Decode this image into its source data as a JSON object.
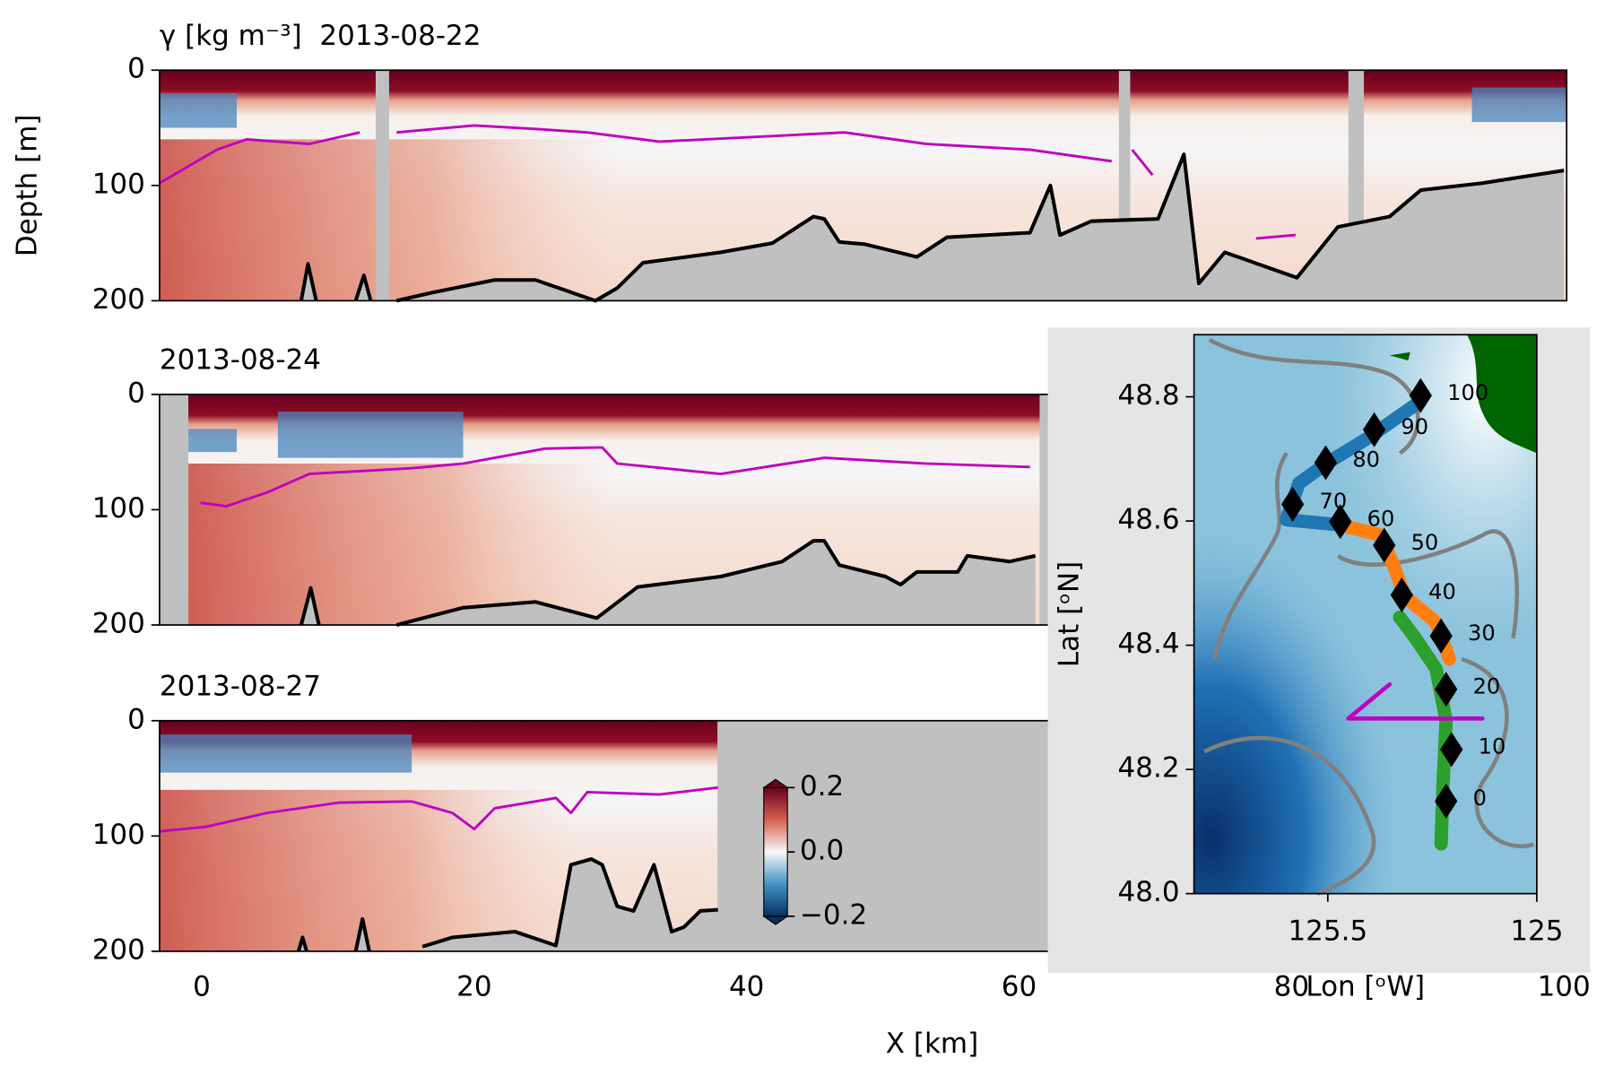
{
  "chart_data": [
    {
      "type": "section",
      "title": "γ [kg m⁻³]  2013-08-22",
      "ylabel": "Depth [m]",
      "xlim": [
        -3.1,
        100.2
      ],
      "ylim": [
        200,
        0
      ],
      "yticks": [
        0,
        100,
        200
      ],
      "bathymetry": {
        "color": "#000000",
        "x": [
          7.3,
          7.8,
          8.4,
          null,
          11.3,
          11.9,
          12.4,
          null,
          14.3,
          16.9,
          21.5,
          24.5,
          28.9,
          30.5,
          32.4,
          38.1,
          41.9,
          44.9,
          45.7,
          46.8,
          48.7,
          52.5,
          54.7,
          60.8,
          62.3,
          63,
          65.3,
          70.2,
          72.1,
          73.2,
          75.1,
          80.4,
          83.4,
          87.2,
          89.5,
          94,
          100
        ],
        "y": [
          200,
          168,
          200,
          null,
          200,
          178,
          200,
          null,
          200,
          193,
          182,
          182,
          200,
          189,
          167,
          158,
          150,
          127,
          129,
          149,
          151,
          162,
          145,
          141,
          100,
          143,
          131,
          129,
          73,
          185,
          158,
          180,
          136,
          127,
          104,
          98,
          87
        ]
      },
      "isopycnal": {
        "color": "#c000c0",
        "x": [
          -3.1,
          1.1,
          3.3,
          7.9,
          11.6,
          null,
          14.3,
          20,
          24.5,
          28.3,
          33.6,
          47.2,
          53.2,
          60.8,
          66.8,
          null,
          68.3,
          69.8,
          null,
          77.4,
          80.3
        ],
        "y": [
          98,
          69,
          60,
          64,
          54,
          null,
          54,
          48,
          51,
          54,
          62,
          54,
          64,
          69,
          79,
          null,
          69,
          91,
          null,
          146,
          143
        ]
      }
    },
    {
      "type": "section",
      "title": "2013-08-24",
      "xlim": [
        -3.1,
        100.2
      ],
      "ylim": [
        200,
        0
      ],
      "yticks": [
        0,
        100,
        200
      ],
      "bathymetry": {
        "color": "#000000",
        "x": [
          7.3,
          8,
          8.6,
          null,
          14.3,
          19.2,
          24.5,
          29,
          32,
          38.1,
          42.6,
          44.9,
          45.7,
          46.8,
          50.2,
          51.3,
          52.5,
          55.5,
          56.2,
          59.3,
          61.2
        ],
        "y": [
          200,
          168,
          200,
          null,
          200,
          185,
          180,
          194,
          167,
          158,
          145,
          127,
          127,
          148,
          158,
          165,
          154,
          154,
          140,
          145,
          140
        ]
      },
      "isopycnal": {
        "color": "#c000c0",
        "x": [
          -0.1,
          1.8,
          4.8,
          7.9,
          15.4,
          19.2,
          25.2,
          29.4,
          30.5,
          38.1,
          45.7,
          53.2,
          60.8
        ],
        "y": [
          94,
          97,
          85,
          69,
          64,
          60,
          47,
          46,
          60,
          69,
          55,
          60,
          63
        ]
      }
    },
    {
      "type": "section",
      "title": "2013-08-27",
      "xlabel": "X [km]",
      "xlim": [
        -3.1,
        100.2
      ],
      "ylim": [
        200,
        0
      ],
      "yticks": [
        0,
        100,
        200
      ],
      "xticks": [
        0,
        20,
        40,
        60,
        80,
        100
      ],
      "bathymetry": {
        "color": "#000000",
        "x": [
          7.1,
          7.4,
          7.7,
          null,
          11.3,
          11.8,
          12.3,
          null,
          16.2,
          18.4,
          23,
          26,
          27.1,
          28.6,
          29.4,
          30.5,
          31.7,
          33.2,
          34.5,
          35.4,
          36.6,
          37.9
        ],
        "y": [
          200,
          188,
          200,
          null,
          200,
          172,
          200,
          null,
          196,
          188,
          183,
          195,
          125,
          120,
          125,
          161,
          165,
          125,
          183,
          179,
          165,
          164
        ]
      },
      "isopycnal": {
        "color": "#c000c0",
        "x": [
          -3.1,
          0.3,
          4.8,
          10.1,
          15.4,
          18.4,
          20,
          21.5,
          26,
          27.1,
          28.3,
          33.6,
          37.9
        ],
        "y": [
          96,
          92,
          80,
          71,
          70,
          80,
          94,
          76,
          67,
          80,
          62,
          64,
          58
        ]
      },
      "colorbar": {
        "clim": [
          -0.2,
          0.2
        ],
        "ticks": [
          0.2,
          {
            "value": 0,
            "label": "0.0"
          },
          {
            "value": -0.2,
            "label": "−0.2"
          }
        ]
      }
    },
    {
      "type": "map",
      "xlabel": "Lon [ᵒW]",
      "ylabel": "Lat [ᵒN]",
      "xlim": [
        125.82,
        125
      ],
      "ylim": [
        48,
        48.9
      ],
      "xticks": [
        125.5,
        125
      ],
      "yticks": [
        {
          "value": 48,
          "label": "48.0"
        },
        48.2,
        48.4,
        48.6,
        48.8
      ],
      "tracks": [
        {
          "color": "#2ca02c",
          "lon": [
            125.229,
            125.224,
            125.217,
            125.241,
            125.291,
            125.328
          ],
          "lat": [
            48.08,
            48.179,
            48.279,
            48.362,
            48.412,
            48.445
          ]
        },
        {
          "color": "#ff7f0e",
          "lon": [
            125.209,
            125.241,
            125.315,
            125.347,
            125.377,
            125.475
          ],
          "lat": [
            48.378,
            48.437,
            48.478,
            48.536,
            48.578,
            48.594
          ]
        },
        {
          "color": "#1f77b4",
          "lon": [
            125.475,
            125.599,
            125.569,
            125.5,
            125.401,
            125.278
          ],
          "lat": [
            48.594,
            48.602,
            48.661,
            48.694,
            48.735,
            48.793
          ]
        },
        {
          "color": "#c000c0",
          "lon": [
            125.352,
            125.451,
            125.13
          ],
          "lat": [
            48.337,
            48.282,
            48.282
          ]
        }
      ],
      "stations": {
        "labels": [
          0,
          10,
          20,
          30,
          40,
          50,
          60,
          70,
          80,
          90,
          100
        ],
        "lon": [
          125.217,
          125.204,
          125.217,
          125.229,
          125.323,
          125.365,
          125.47,
          125.584,
          125.505,
          125.389,
          125.278
        ],
        "lat": [
          48.149,
          48.232,
          48.329,
          48.415,
          48.481,
          48.561,
          48.599,
          48.627,
          48.694,
          48.747,
          48.802
        ]
      }
    }
  ]
}
